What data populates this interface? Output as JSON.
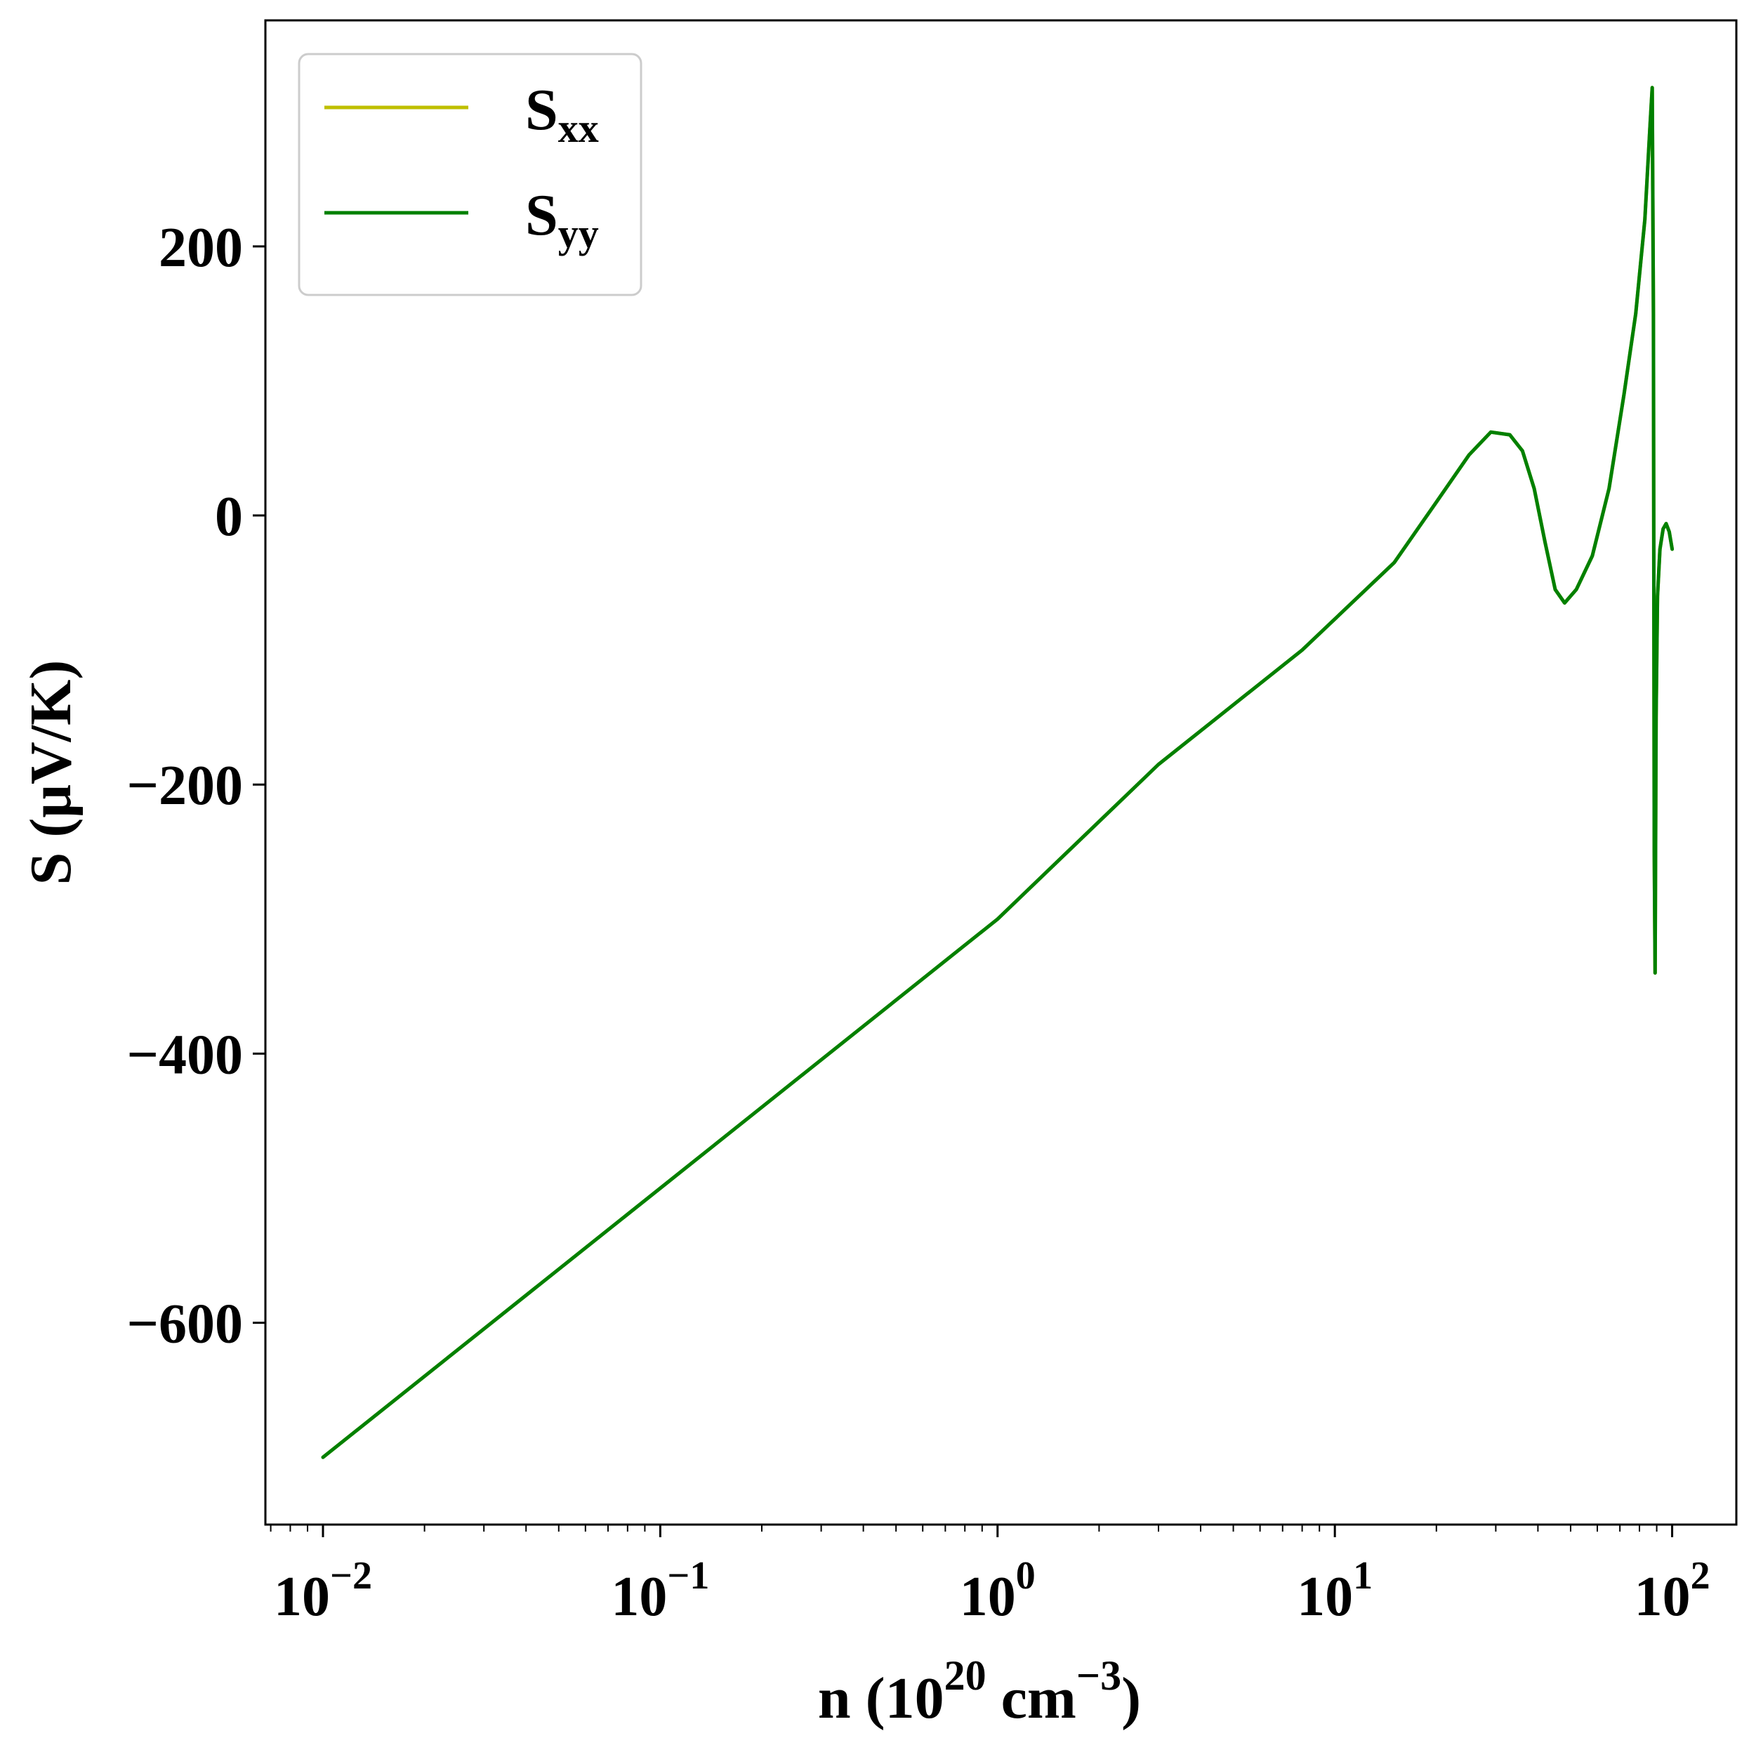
{
  "chart_data": {
    "type": "line",
    "title": "",
    "xlabel": {
      "prefix": "n (10",
      "sup1": "20",
      "mid": " cm",
      "sup2": "−3",
      "suffix": ")"
    },
    "ylabel": "S (μV/K)",
    "xscale": "log",
    "xlim": [
      0.00675,
      155
    ],
    "ylim": [
      -750,
      368
    ],
    "x_ticks": [
      {
        "value": 0.01,
        "base": "10",
        "exp": "−2"
      },
      {
        "value": 0.1,
        "base": "10",
        "exp": "−1"
      },
      {
        "value": 1,
        "base": "10",
        "exp": "0"
      },
      {
        "value": 10,
        "base": "10",
        "exp": "1"
      },
      {
        "value": 100,
        "base": "10",
        "exp": "2"
      }
    ],
    "y_ticks": [
      {
        "value": 200,
        "label": "200"
      },
      {
        "value": 0,
        "label": "0"
      },
      {
        "value": -200,
        "label": "−200"
      },
      {
        "value": -400,
        "label": "−400"
      },
      {
        "value": -600,
        "label": "−600"
      }
    ],
    "grid": false,
    "legend_position": "upper-left",
    "series": [
      {
        "name_base": "S",
        "name_sub": "xx",
        "color": "#bfbf00",
        "x": [
          0.01,
          0.1,
          1,
          3,
          8,
          15,
          20,
          25,
          29,
          33,
          36,
          39,
          42,
          45,
          48,
          52,
          58,
          65,
          72,
          78,
          83,
          86,
          87.3,
          88,
          88.5,
          89,
          89.6,
          90.5,
          92,
          94,
          96,
          98,
          100
        ],
        "y": [
          -700,
          -500,
          -300,
          -185,
          -100,
          -35,
          10,
          45,
          62,
          60,
          48,
          20,
          -20,
          -55,
          -65,
          -55,
          -30,
          20,
          90,
          150,
          220,
          290,
          318,
          150,
          -250,
          -340,
          -150,
          -60,
          -25,
          -10,
          -6,
          -12,
          -25
        ]
      },
      {
        "name_base": "S",
        "name_sub": "yy",
        "color": "#008000",
        "x": [
          0.01,
          0.1,
          1,
          3,
          8,
          15,
          20,
          25,
          29,
          33,
          36,
          39,
          42,
          45,
          48,
          52,
          58,
          65,
          72,
          78,
          83,
          86,
          87.3,
          88,
          88.5,
          89,
          89.6,
          90.5,
          92,
          94,
          96,
          98,
          100
        ],
        "y": [
          -700,
          -500,
          -300,
          -185,
          -100,
          -35,
          10,
          45,
          62,
          60,
          48,
          20,
          -20,
          -55,
          -65,
          -55,
          -30,
          20,
          90,
          150,
          220,
          290,
          318,
          150,
          -250,
          -340,
          -150,
          -60,
          -25,
          -10,
          -6,
          -12,
          -25
        ]
      }
    ]
  }
}
